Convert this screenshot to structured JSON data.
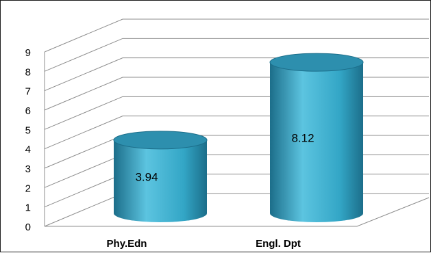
{
  "chart_data": {
    "type": "bar",
    "categories": [
      "Phy.Edn",
      "Engl. Dpt"
    ],
    "values": [
      3.94,
      8.12
    ],
    "data_labels": [
      "3.94",
      "8.12"
    ],
    "ylim": [
      0,
      9
    ],
    "yticks": [
      "0",
      "1",
      "2",
      "3",
      "4",
      "5",
      "6",
      "7",
      "8",
      "9"
    ],
    "title": "",
    "xlabel": "",
    "ylabel": "",
    "grid": true,
    "style": "3d-cylinder",
    "colors": {
      "bar_light": "#5cc4e0",
      "bar_mid": "#33a6c6",
      "bar_dark": "#1c6e8a",
      "bar_top": "#2d8fae",
      "grid": "#8c8c8c"
    }
  }
}
